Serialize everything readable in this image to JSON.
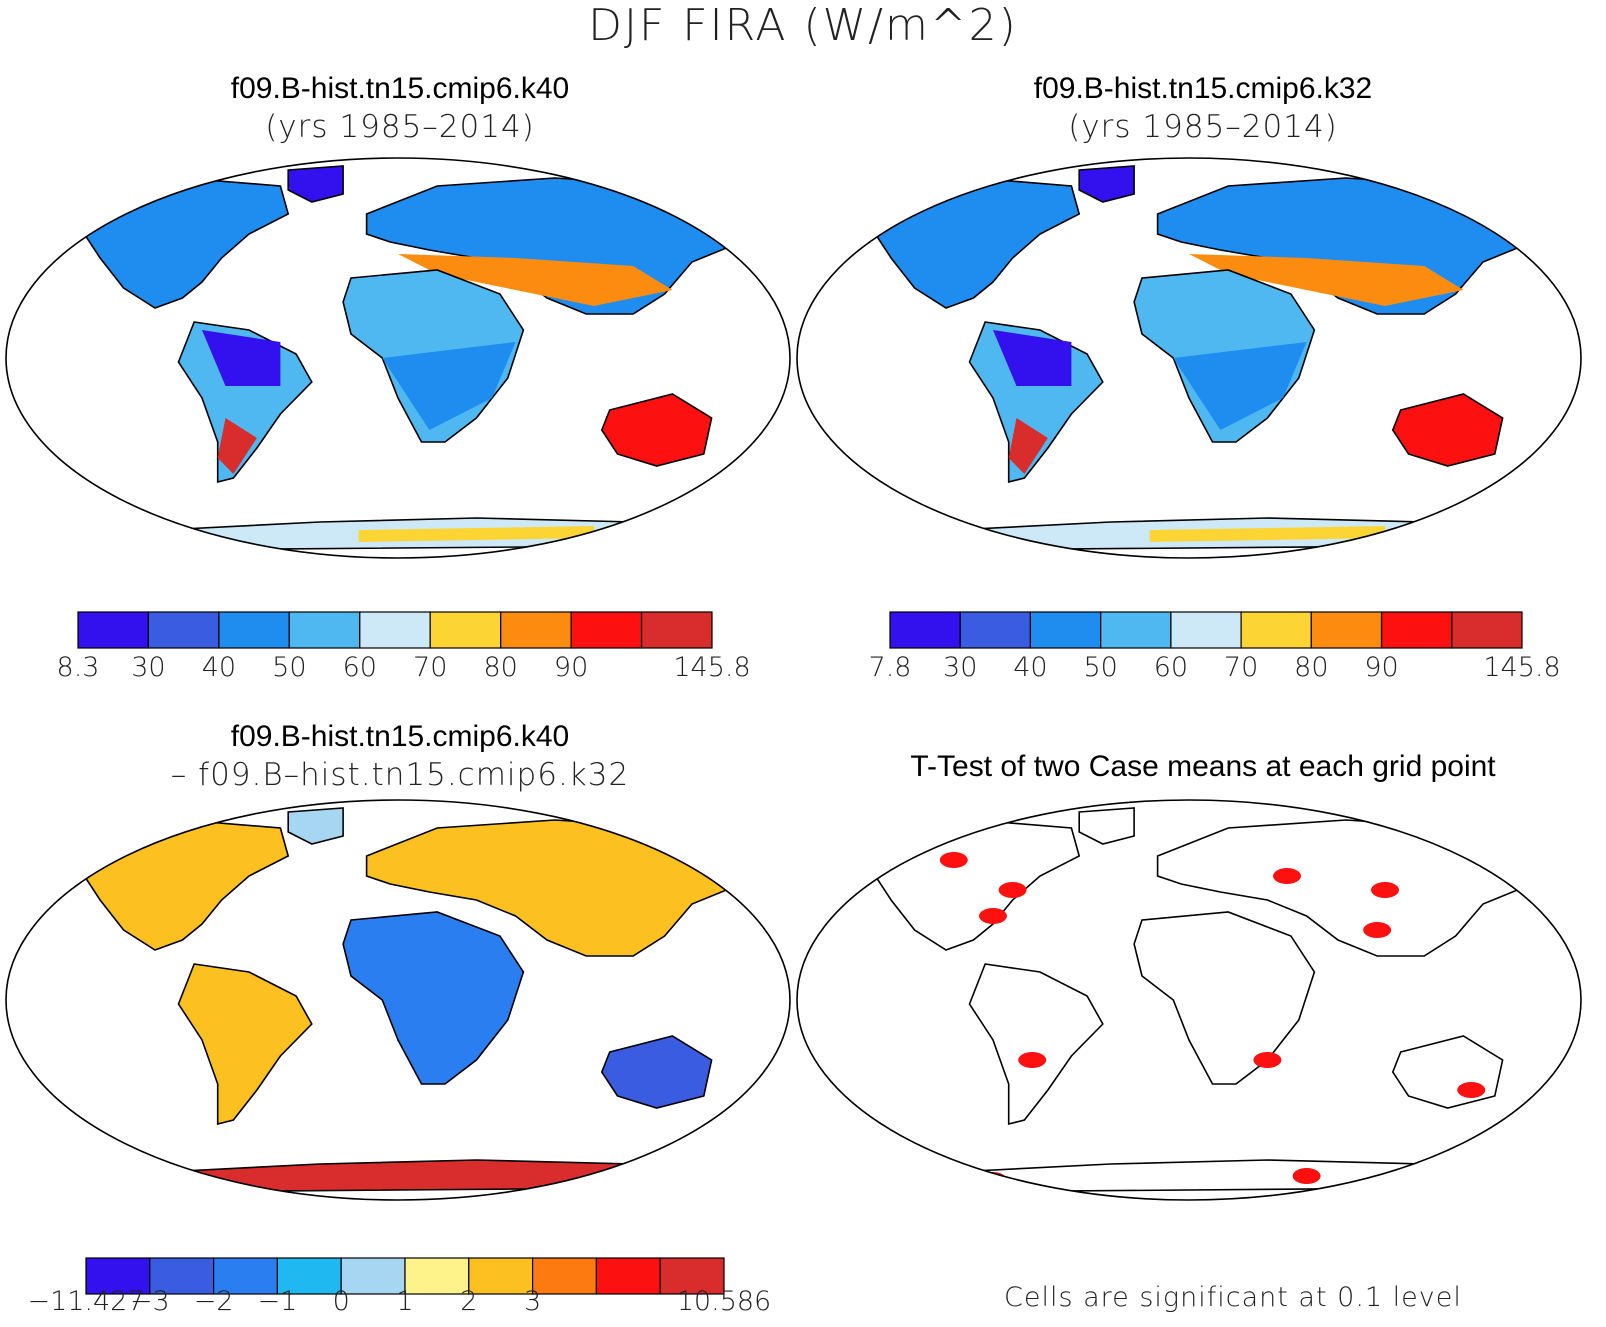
{
  "title": "DJF FIRA (W/m^2)",
  "panels": [
    {
      "line1": "f09.B-hist.tn15.cmip6.k40",
      "line2": "(yrs 1985–2014)"
    },
    {
      "line1": "f09.B-hist.tn15.cmip6.k32",
      "line2": "(yrs 1985–2014)"
    },
    {
      "line1": "f09.B-hist.tn15.cmip6.k40",
      "line2": "– f09.B–hist.tn15.cmip6.k32"
    },
    {
      "line1": "T-Test of two Case means at each grid point",
      "line2": ""
    }
  ],
  "colorbars": [
    {
      "colors": [
        "#3311ee",
        "#3a5ce0",
        "#1f8cf0",
        "#4fb8f0",
        "#cde8f6",
        "#fcd535",
        "#fc8c10",
        "#fc1010",
        "#d92c2c"
      ],
      "ticks": [
        "8.3",
        "30",
        "40",
        "50",
        "60",
        "70",
        "80",
        "90",
        "145.8"
      ]
    },
    {
      "colors": [
        "#3311ee",
        "#3a5ce0",
        "#1f8cf0",
        "#4fb8f0",
        "#cde8f6",
        "#fcd535",
        "#fc8c10",
        "#fc1010",
        "#d92c2c"
      ],
      "ticks": [
        "7.8",
        "30",
        "40",
        "50",
        "60",
        "70",
        "80",
        "90",
        "145.8"
      ]
    },
    {
      "colors": [
        "#3311ee",
        "#3a5ce0",
        "#2a7ef0",
        "#20b8f0",
        "#a6d6f2",
        "#fdf38a",
        "#fcc020",
        "#fc7a10",
        "#fc1010",
        "#d92c2c"
      ],
      "ticks": [
        "−11.427",
        "−3",
        "−2",
        "−1",
        "0",
        "1",
        "2",
        "3",
        "10.586"
      ]
    }
  ],
  "note": "Cells are significant at 0.1 level"
}
